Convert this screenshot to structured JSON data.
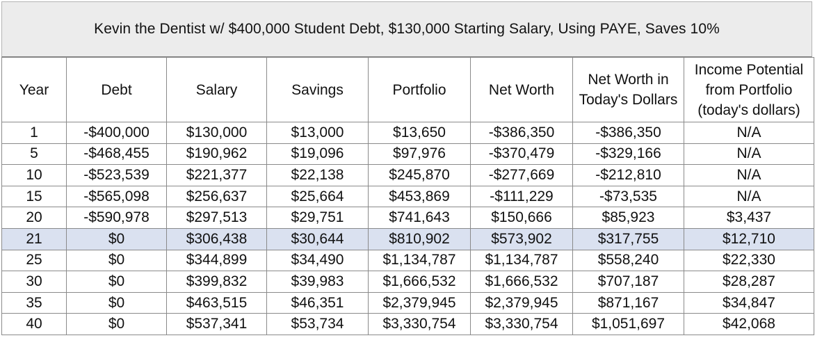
{
  "title": "Kevin the Dentist w/ $400,000 Student Debt, $130,000 Starting Salary, Using PAYE, Saves 10%",
  "columns": [
    {
      "key": "year",
      "label": "Year"
    },
    {
      "key": "debt",
      "label": "Debt"
    },
    {
      "key": "salary",
      "label": "Salary"
    },
    {
      "key": "savings",
      "label": "Savings"
    },
    {
      "key": "portfolio",
      "label": "Portfolio"
    },
    {
      "key": "net_worth",
      "label": "Net Worth"
    },
    {
      "key": "net_worth_today",
      "label": "Net Worth in Today's Dollars"
    },
    {
      "key": "income_potential",
      "label": "Income Potential from Portfolio (today's dollars)"
    }
  ],
  "highlight_color": "#dae1f0",
  "rows": [
    {
      "year": "1",
      "debt": "-$400,000",
      "salary": "$130,000",
      "savings": "$13,000",
      "portfolio": "$13,650",
      "net_worth": "-$386,350",
      "net_worth_today": "-$386,350",
      "income_potential": "N/A"
    },
    {
      "year": "5",
      "debt": "-$468,455",
      "salary": "$190,962",
      "savings": "$19,096",
      "portfolio": "$97,976",
      "net_worth": "-$370,479",
      "net_worth_today": "-$329,166",
      "income_potential": "N/A"
    },
    {
      "year": "10",
      "debt": "-$523,539",
      "salary": "$221,377",
      "savings": "$22,138",
      "portfolio": "$245,870",
      "net_worth": "-$277,669",
      "net_worth_today": "-$212,810",
      "income_potential": "N/A"
    },
    {
      "year": "15",
      "debt": "-$565,098",
      "salary": "$256,637",
      "savings": "$25,664",
      "portfolio": "$453,869",
      "net_worth": "-$111,229",
      "net_worth_today": "-$73,535",
      "income_potential": "N/A"
    },
    {
      "year": "20",
      "debt": "-$590,978",
      "salary": "$297,513",
      "savings": "$29,751",
      "portfolio": "$741,643",
      "net_worth": "$150,666",
      "net_worth_today": "$85,923",
      "income_potential": "$3,437"
    },
    {
      "year": "21",
      "debt": "$0",
      "salary": "$306,438",
      "savings": "$30,644",
      "portfolio": "$810,902",
      "net_worth": "$573,902",
      "net_worth_today": "$317,755",
      "income_potential": "$12,710",
      "highlight": true
    },
    {
      "year": "25",
      "debt": "$0",
      "salary": "$344,899",
      "savings": "$34,490",
      "portfolio": "$1,134,787",
      "net_worth": "$1,134,787",
      "net_worth_today": "$558,240",
      "income_potential": "$22,330"
    },
    {
      "year": "30",
      "debt": "$0",
      "salary": "$399,832",
      "savings": "$39,983",
      "portfolio": "$1,666,532",
      "net_worth": "$1,666,532",
      "net_worth_today": "$707,187",
      "income_potential": "$28,287"
    },
    {
      "year": "35",
      "debt": "$0",
      "salary": "$463,515",
      "savings": "$46,351",
      "portfolio": "$2,379,945",
      "net_worth": "$2,379,945",
      "net_worth_today": "$871,167",
      "income_potential": "$34,847"
    },
    {
      "year": "40",
      "debt": "$0",
      "salary": "$537,341",
      "savings": "$53,734",
      "portfolio": "$3,330,754",
      "net_worth": "$3,330,754",
      "net_worth_today": "$1,051,697",
      "income_potential": "$42,068"
    }
  ]
}
